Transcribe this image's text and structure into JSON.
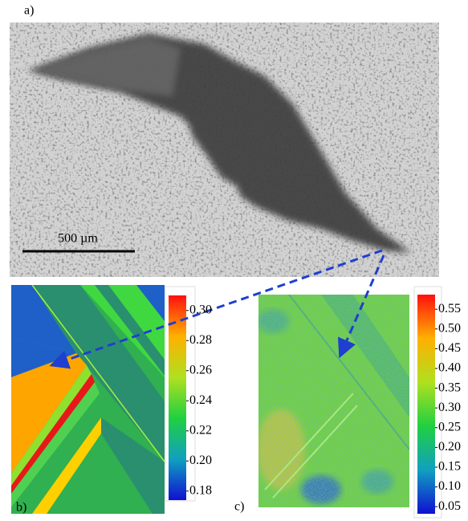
{
  "panels": {
    "a": {
      "label": "a)",
      "scale_bar": "500 µm"
    },
    "b": {
      "label": "b)",
      "colorbar": {
        "lim": [
          0.174,
          0.31
        ],
        "ticks": [
          {
            "value": 0.3,
            "label": "0.30"
          },
          {
            "value": 0.28,
            "label": "0.28"
          },
          {
            "value": 0.26,
            "label": "0.26"
          },
          {
            "value": 0.24,
            "label": "0.24"
          },
          {
            "value": 0.22,
            "label": "0.22"
          },
          {
            "value": 0.2,
            "label": "0.20"
          },
          {
            "value": 0.18,
            "label": "0.18"
          }
        ]
      }
    },
    "c": {
      "label": "c)",
      "colorbar": {
        "lim": [
          0.032,
          0.587
        ],
        "ticks": [
          {
            "value": 0.55,
            "label": "0.55"
          },
          {
            "value": 0.5,
            "label": "0.50"
          },
          {
            "value": 0.45,
            "label": "0.45"
          },
          {
            "value": 0.4,
            "label": "0.40"
          },
          {
            "value": 0.35,
            "label": "0.35"
          },
          {
            "value": 0.3,
            "label": "0.30"
          },
          {
            "value": 0.25,
            "label": "0.25"
          },
          {
            "value": 0.2,
            "label": "0.20"
          },
          {
            "value": 0.15,
            "label": "0.15"
          },
          {
            "value": 0.1,
            "label": "0.10"
          },
          {
            "value": 0.05,
            "label": "0.05"
          }
        ]
      }
    }
  }
}
